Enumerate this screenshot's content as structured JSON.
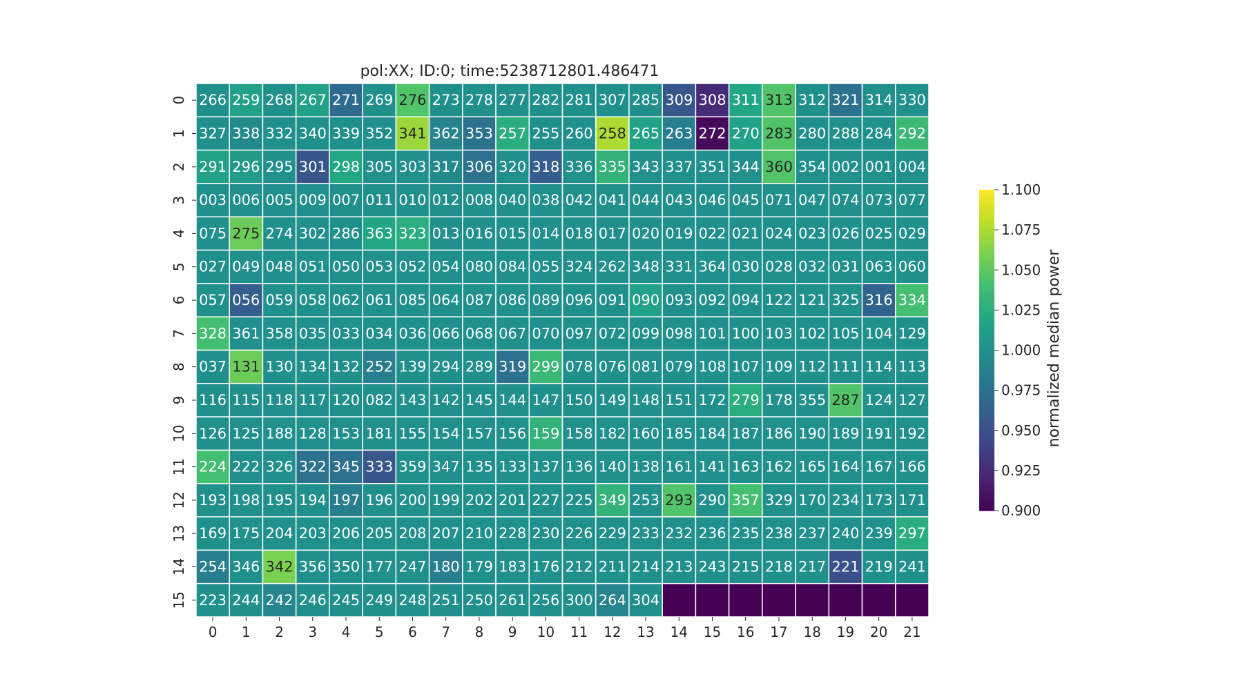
{
  "chart_data": {
    "type": "heatmap",
    "title": "pol:XX; ID:0; time:5238712801.486471",
    "colormap": "viridis",
    "vmin": 0.9,
    "vmax": 1.1,
    "nan_color": "#440154",
    "x_tick_labels": [
      "0",
      "1",
      "2",
      "3",
      "4",
      "5",
      "6",
      "7",
      "8",
      "9",
      "10",
      "11",
      "12",
      "13",
      "14",
      "15",
      "16",
      "17",
      "18",
      "19",
      "20",
      "21"
    ],
    "y_tick_labels": [
      "0",
      "1",
      "2",
      "3",
      "4",
      "5",
      "6",
      "7",
      "8",
      "9",
      "10",
      "11",
      "12",
      "13",
      "14",
      "15"
    ],
    "annotations": [
      [
        "266",
        "259",
        "268",
        "267",
        "271",
        "269",
        "276",
        "273",
        "278",
        "277",
        "282",
        "281",
        "307",
        "285",
        "309",
        "308",
        "311",
        "313",
        "312",
        "321",
        "314",
        "330"
      ],
      [
        "327",
        "338",
        "332",
        "340",
        "339",
        "352",
        "341",
        "362",
        "353",
        "257",
        "255",
        "260",
        "258",
        "265",
        "263",
        "272",
        "270",
        "283",
        "280",
        "288",
        "284",
        "292"
      ],
      [
        "291",
        "296",
        "295",
        "301",
        "298",
        "305",
        "303",
        "317",
        "306",
        "320",
        "318",
        "336",
        "335",
        "343",
        "337",
        "351",
        "344",
        "360",
        "354",
        "002",
        "001",
        "004"
      ],
      [
        "003",
        "006",
        "005",
        "009",
        "007",
        "011",
        "010",
        "012",
        "008",
        "040",
        "038",
        "042",
        "041",
        "044",
        "043",
        "046",
        "045",
        "071",
        "047",
        "074",
        "073",
        "077"
      ],
      [
        "075",
        "275",
        "274",
        "302",
        "286",
        "363",
        "323",
        "013",
        "016",
        "015",
        "014",
        "018",
        "017",
        "020",
        "019",
        "022",
        "021",
        "024",
        "023",
        "026",
        "025",
        "029"
      ],
      [
        "027",
        "049",
        "048",
        "051",
        "050",
        "053",
        "052",
        "054",
        "080",
        "084",
        "055",
        "324",
        "262",
        "348",
        "331",
        "364",
        "030",
        "028",
        "032",
        "031",
        "063",
        "060"
      ],
      [
        "057",
        "056",
        "059",
        "058",
        "062",
        "061",
        "085",
        "064",
        "087",
        "086",
        "089",
        "096",
        "091",
        "090",
        "093",
        "092",
        "094",
        "122",
        "121",
        "325",
        "316",
        "334"
      ],
      [
        "328",
        "361",
        "358",
        "035",
        "033",
        "034",
        "036",
        "066",
        "068",
        "067",
        "070",
        "097",
        "072",
        "099",
        "098",
        "101",
        "100",
        "103",
        "102",
        "105",
        "104",
        "129"
      ],
      [
        "037",
        "131",
        "130",
        "134",
        "132",
        "252",
        "139",
        "294",
        "289",
        "319",
        "299",
        "078",
        "076",
        "081",
        "079",
        "108",
        "107",
        "109",
        "112",
        "111",
        "114",
        "113"
      ],
      [
        "116",
        "115",
        "118",
        "117",
        "120",
        "082",
        "143",
        "142",
        "145",
        "144",
        "147",
        "150",
        "149",
        "148",
        "151",
        "172",
        "279",
        "178",
        "355",
        "287",
        "124",
        "127"
      ],
      [
        "126",
        "125",
        "188",
        "128",
        "153",
        "181",
        "155",
        "154",
        "157",
        "156",
        "159",
        "158",
        "182",
        "160",
        "185",
        "184",
        "187",
        "186",
        "190",
        "189",
        "191",
        "192"
      ],
      [
        "224",
        "222",
        "326",
        "322",
        "345",
        "333",
        "359",
        "347",
        "135",
        "133",
        "137",
        "136",
        "140",
        "138",
        "161",
        "141",
        "163",
        "162",
        "165",
        "164",
        "167",
        "166"
      ],
      [
        "193",
        "198",
        "195",
        "194",
        "197",
        "196",
        "200",
        "199",
        "202",
        "201",
        "227",
        "225",
        "349",
        "253",
        "293",
        "290",
        "357",
        "329",
        "170",
        "234",
        "173",
        "171"
      ],
      [
        "169",
        "175",
        "204",
        "203",
        "206",
        "205",
        "208",
        "207",
        "210",
        "228",
        "230",
        "226",
        "229",
        "233",
        "232",
        "236",
        "235",
        "238",
        "237",
        "240",
        "239",
        "297"
      ],
      [
        "254",
        "346",
        "342",
        "356",
        "350",
        "177",
        "247",
        "180",
        "179",
        "183",
        "176",
        "212",
        "211",
        "214",
        "213",
        "243",
        "215",
        "218",
        "217",
        "221",
        "219",
        "241"
      ],
      [
        "223",
        "244",
        "242",
        "246",
        "245",
        "249",
        "248",
        "251",
        "250",
        "261",
        "256",
        "300",
        "264",
        "304",
        "",
        "",
        "",
        "",
        "",
        "",
        "",
        ""
      ]
    ],
    "values": [
      [
        1.0,
        1.015,
        1.0,
        1.015,
        0.97,
        1.0,
        1.045,
        1.0,
        1.0,
        1.0,
        1.0,
        1.0,
        1.0,
        1.0,
        0.955,
        0.925,
        1.02,
        1.045,
        1.0,
        0.975,
        1.0,
        1.0
      ],
      [
        1.0,
        0.995,
        1.0,
        1.0,
        1.0,
        1.0,
        1.07,
        0.99,
        0.975,
        1.025,
        1.0,
        1.0,
        1.075,
        1.015,
        0.985,
        0.905,
        1.015,
        1.045,
        1.0,
        1.0,
        1.0,
        1.035
      ],
      [
        1.015,
        1.01,
        1.0,
        0.955,
        1.02,
        1.0,
        1.0,
        0.995,
        0.975,
        1.0,
        0.96,
        1.0,
        1.03,
        1.0,
        1.0,
        1.0,
        1.0,
        1.045,
        1.0,
        1.0,
        1.0,
        1.0
      ],
      [
        1.0,
        1.0,
        1.0,
        1.0,
        1.0,
        1.0,
        1.0,
        1.0,
        1.0,
        1.0,
        1.0,
        1.0,
        1.0,
        1.0,
        1.0,
        1.0,
        1.0,
        1.0,
        1.0,
        1.0,
        1.0,
        1.0
      ],
      [
        1.0,
        1.055,
        1.0,
        1.0,
        1.0,
        1.02,
        1.025,
        1.0,
        1.0,
        1.0,
        1.0,
        1.0,
        1.0,
        1.0,
        1.0,
        1.0,
        1.0,
        1.0,
        1.0,
        1.0,
        1.0,
        1.0
      ],
      [
        1.0,
        1.0,
        1.0,
        1.0,
        1.0,
        1.0,
        1.0,
        1.0,
        1.0,
        1.0,
        1.0,
        1.0,
        1.0,
        1.0,
        1.0,
        1.0,
        1.0,
        1.0,
        1.0,
        1.0,
        1.0,
        1.0
      ],
      [
        1.0,
        0.96,
        1.0,
        1.0,
        1.0,
        1.0,
        1.0,
        1.0,
        1.0,
        1.0,
        1.0,
        1.0,
        1.0,
        1.015,
        1.0,
        1.0,
        1.0,
        1.0,
        1.0,
        1.0,
        0.965,
        1.04
      ],
      [
        1.04,
        1.0,
        1.0,
        1.0,
        1.0,
        1.0,
        1.0,
        1.0,
        1.0,
        1.0,
        1.0,
        1.0,
        1.0,
        1.0,
        1.0,
        1.0,
        1.0,
        1.0,
        1.0,
        1.0,
        1.0,
        1.0
      ],
      [
        1.0,
        1.055,
        1.0,
        1.0,
        1.0,
        0.985,
        1.0,
        1.0,
        1.0,
        0.975,
        1.035,
        1.0,
        1.0,
        1.0,
        1.0,
        1.0,
        1.0,
        1.0,
        1.0,
        1.0,
        1.0,
        1.0
      ],
      [
        1.0,
        1.0,
        1.0,
        1.0,
        1.0,
        1.0,
        1.0,
        1.0,
        1.0,
        1.0,
        1.0,
        1.0,
        1.0,
        1.0,
        1.0,
        1.0,
        1.025,
        1.0,
        1.0,
        1.045,
        1.0,
        1.0
      ],
      [
        1.0,
        1.0,
        1.0,
        1.0,
        1.0,
        1.0,
        1.0,
        1.0,
        1.0,
        1.0,
        1.03,
        1.0,
        1.0,
        1.0,
        1.0,
        1.0,
        1.0,
        1.0,
        1.0,
        1.0,
        1.0,
        1.0
      ],
      [
        1.04,
        1.0,
        1.0,
        0.975,
        0.975,
        0.955,
        1.0,
        1.0,
        1.0,
        1.0,
        1.0,
        1.0,
        1.0,
        1.0,
        1.0,
        1.0,
        1.0,
        1.0,
        1.0,
        1.0,
        1.0,
        1.0
      ],
      [
        1.0,
        1.0,
        1.0,
        1.0,
        0.985,
        1.0,
        1.0,
        1.0,
        1.0,
        1.0,
        1.0,
        1.0,
        1.03,
        1.0,
        1.045,
        1.0,
        1.04,
        1.0,
        1.0,
        1.0,
        1.0,
        1.0
      ],
      [
        1.0,
        1.0,
        1.0,
        1.0,
        1.0,
        1.0,
        1.0,
        1.0,
        1.0,
        1.0,
        1.0,
        1.0,
        1.0,
        1.0,
        1.0,
        1.0,
        1.0,
        1.0,
        1.0,
        1.0,
        1.0,
        1.025
      ],
      [
        0.985,
        1.0,
        1.06,
        1.0,
        1.0,
        1.0,
        1.0,
        0.985,
        1.0,
        1.0,
        1.0,
        1.0,
        1.0,
        1.0,
        1.0,
        1.0,
        1.0,
        1.0,
        1.0,
        0.95,
        1.0,
        1.0
      ],
      [
        1.0,
        1.0,
        0.99,
        1.0,
        1.0,
        1.0,
        1.0,
        1.0,
        1.0,
        1.0,
        1.0,
        1.0,
        0.99,
        1.0,
        null,
        null,
        null,
        null,
        null,
        null,
        null,
        null
      ]
    ],
    "colorbar": {
      "label": "normalized median power",
      "ticks": [
        "0.900",
        "0.925",
        "0.950",
        "0.975",
        "1.000",
        "1.025",
        "1.050",
        "1.075",
        "1.100"
      ]
    },
    "grid": false
  }
}
